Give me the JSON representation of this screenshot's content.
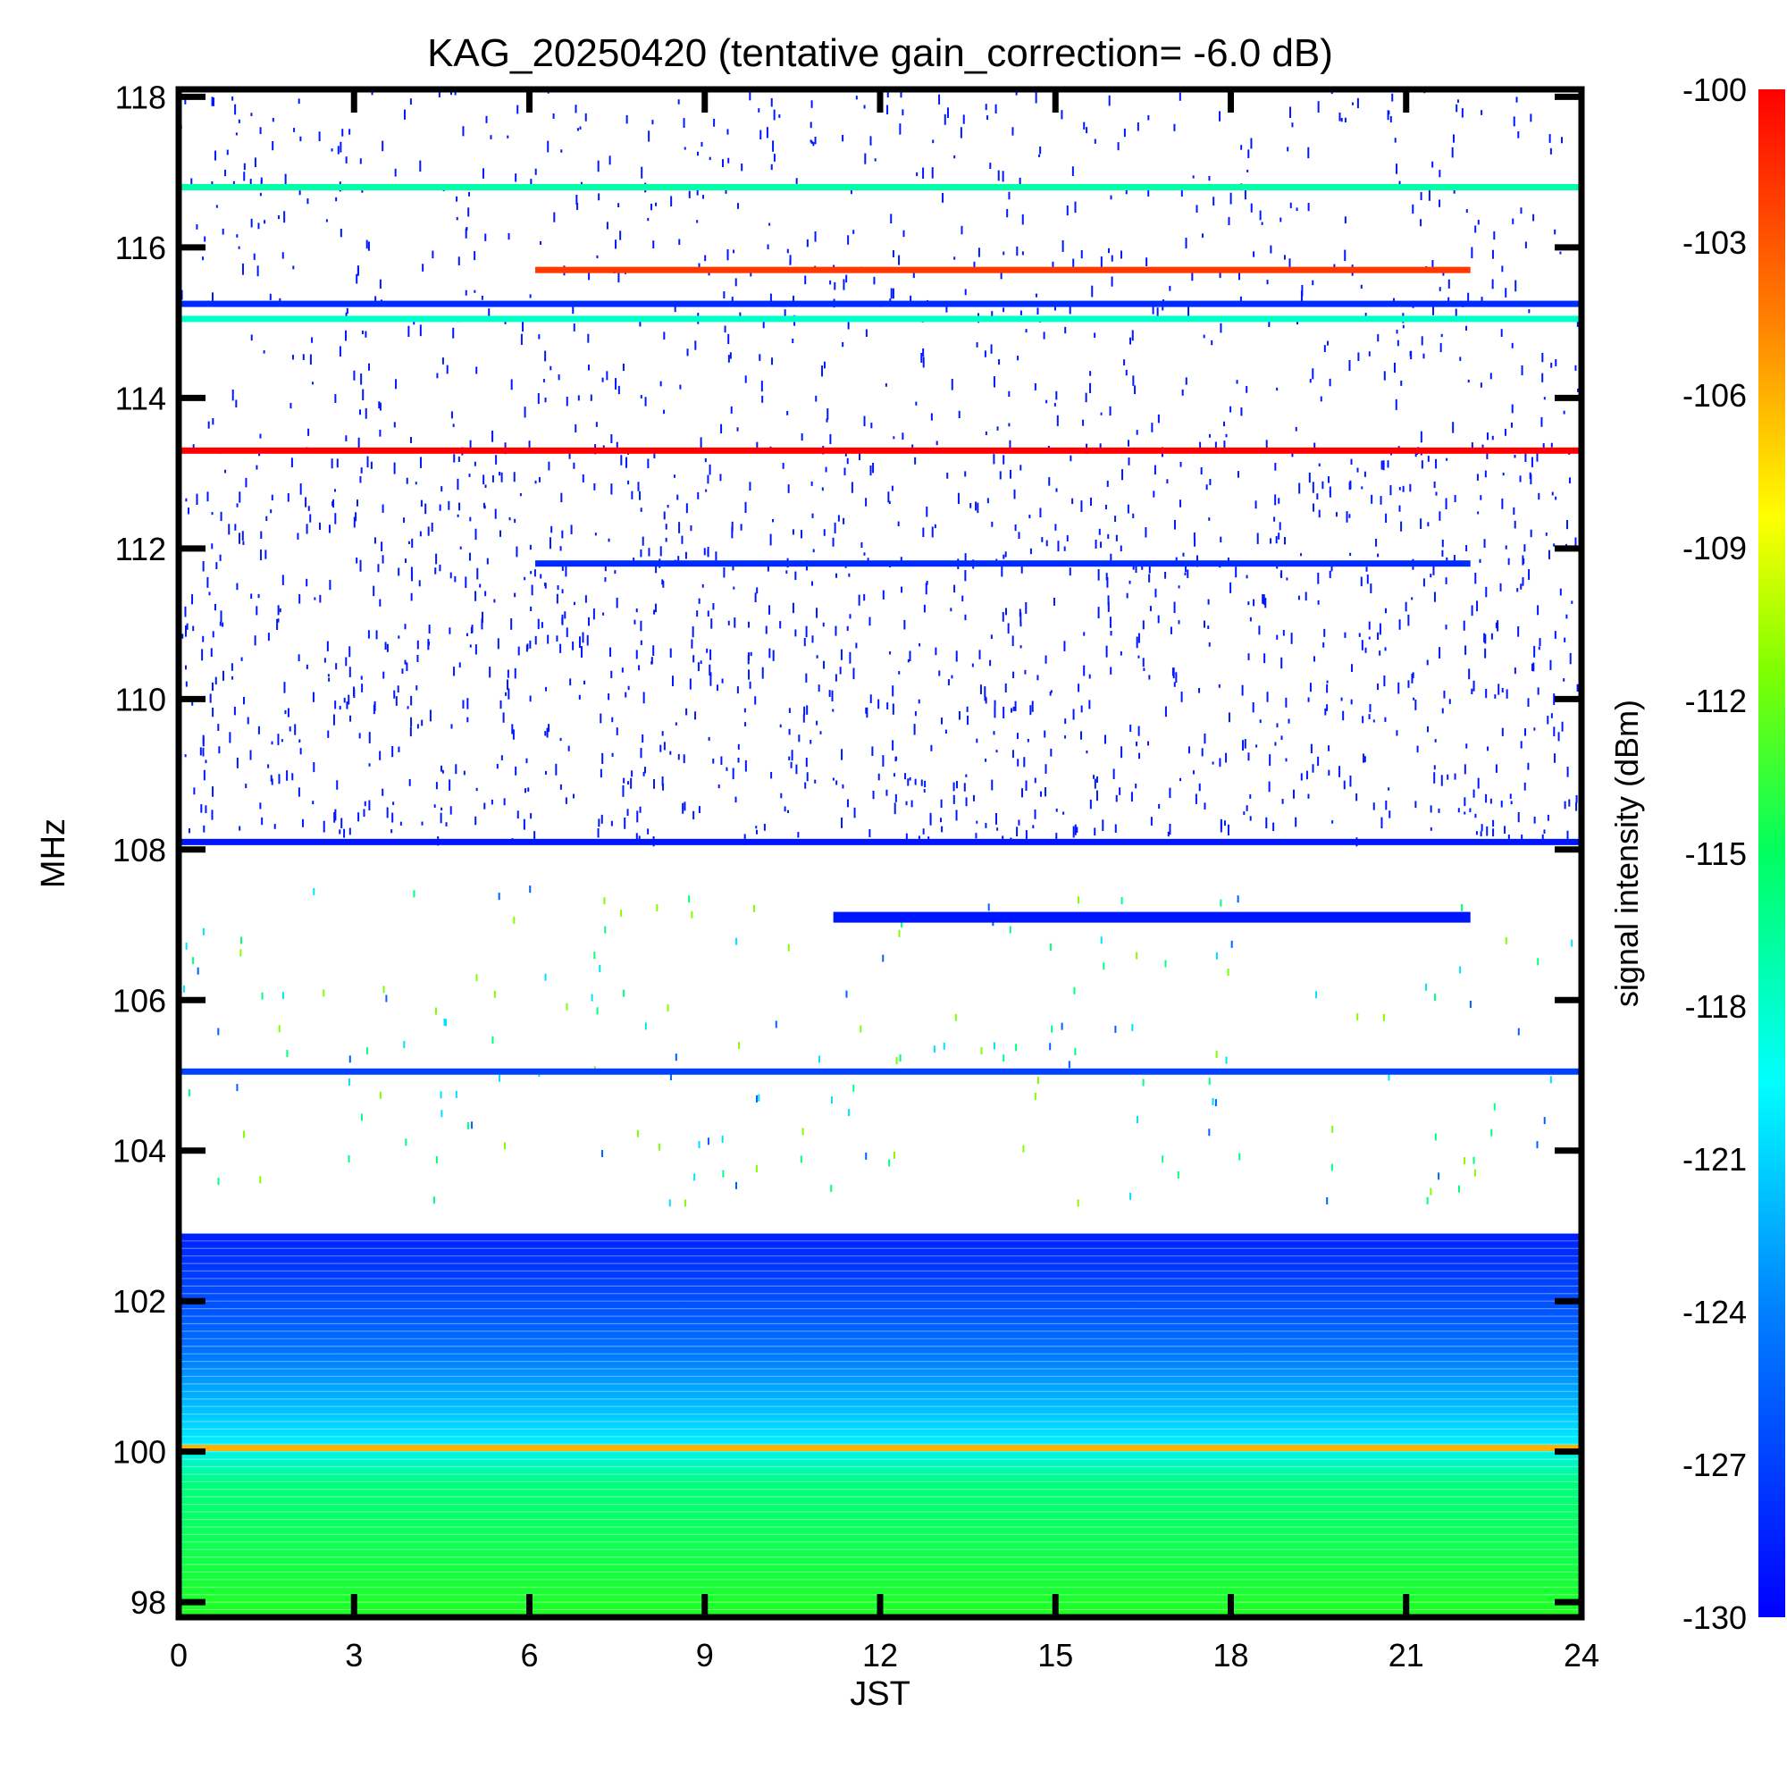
{
  "chart_data": {
    "type": "heatmap",
    "title": "KAG_20250420 (tentative gain_correction= -6.0 dB)",
    "xlabel": "JST",
    "ylabel": "MHz",
    "xlim": [
      0,
      24
    ],
    "ylim": [
      97.8,
      118.1
    ],
    "x_ticks": [
      0,
      3,
      6,
      9,
      12,
      15,
      18,
      21,
      24
    ],
    "y_ticks": [
      98,
      100,
      102,
      104,
      106,
      108,
      110,
      112,
      114,
      116,
      118
    ],
    "colorbar": {
      "label": "signal intensity (dBm)",
      "range": [
        -130,
        -100
      ],
      "ticks": [
        -100,
        -103,
        -106,
        -109,
        -112,
        -115,
        -118,
        -121,
        -124,
        -127,
        -130
      ],
      "colormap": "rainbow (blue low → red high)"
    },
    "signals": [
      {
        "freq_mhz": 116.8,
        "t_start": 0,
        "t_end": 24,
        "dbm": -117
      },
      {
        "freq_mhz": 115.7,
        "t_start": 6.1,
        "t_end": 22.1,
        "dbm": -102
      },
      {
        "freq_mhz": 115.25,
        "t_start": 0,
        "t_end": 24,
        "dbm": -128
      },
      {
        "freq_mhz": 115.05,
        "t_start": 0,
        "t_end": 24,
        "dbm": -118
      },
      {
        "freq_mhz": 113.3,
        "t_start": 0,
        "t_end": 24,
        "dbm": -100
      },
      {
        "freq_mhz": 111.8,
        "t_start": 6.1,
        "t_end": 22.1,
        "dbm": -128
      },
      {
        "freq_mhz": 108.1,
        "t_start": 0,
        "t_end": 24,
        "dbm": -129
      },
      {
        "freq_mhz": 107.1,
        "t_start": 11.2,
        "t_end": 22.1,
        "dbm": -129
      },
      {
        "freq_mhz": 105.05,
        "t_start": 0,
        "t_end": 24,
        "dbm": -127
      },
      {
        "freq_mhz": 100.05,
        "t_start": 0,
        "t_end": 24,
        "dbm": -106
      }
    ],
    "noise_floor_band_mhz": [
      97.8,
      102.9
    ]
  }
}
